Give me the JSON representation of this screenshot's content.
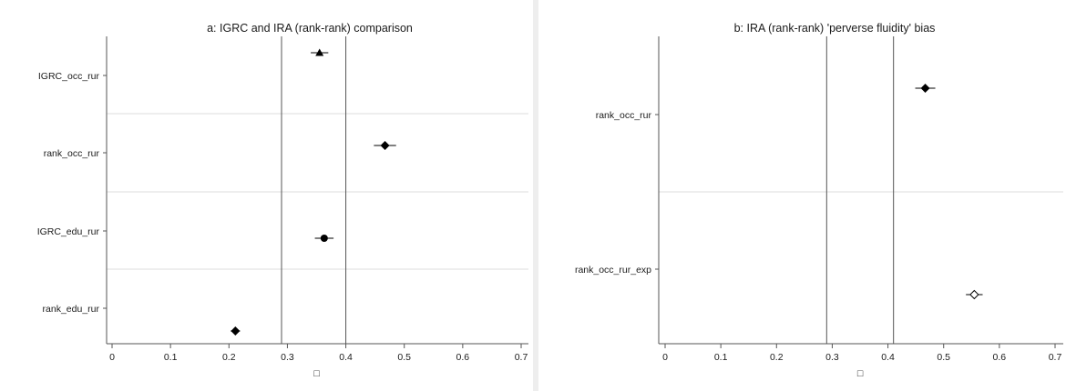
{
  "chart_data": [
    {
      "type": "scatter",
      "title": "a: IGRC and IRA (rank-rank) comparison",
      "categories": [
        "IGRC_occ_rur",
        "rank_occ_rur",
        "IGRC_edu_rur",
        "rank_edu_rur"
      ],
      "points": [
        {
          "label": "IGRC_occ_rur",
          "estimate": 0.355,
          "ci": [
            0.34,
            0.37
          ],
          "marker": "triangle"
        },
        {
          "label": "rank_occ_rur",
          "estimate": 0.467,
          "ci": [
            0.448,
            0.486
          ],
          "marker": "diamond"
        },
        {
          "label": "IGRC_edu_rur",
          "estimate": 0.363,
          "ci": [
            0.347,
            0.379
          ],
          "marker": "circle"
        },
        {
          "label": "rank_edu_rur",
          "estimate": 0.211,
          "ci": [
            0.203,
            0.219
          ],
          "marker": "diamond"
        }
      ],
      "reference_lines": [
        0.29,
        0.4
      ],
      "xlim": [
        -0.01,
        0.71
      ],
      "xticks": [
        "0",
        "0.1",
        "0.2",
        "0.3",
        "0.4",
        "0.5",
        "0.6",
        "0.7"
      ],
      "xtick_values": [
        0,
        0.1,
        0.2,
        0.3,
        0.4,
        0.5,
        0.6,
        0.7
      ],
      "legend_symbol": "□",
      "grid": "horizontal separators"
    },
    {
      "type": "scatter",
      "title": "b: IRA (rank-rank) 'perverse fluidity' bias",
      "categories": [
        "rank_occ_rur",
        "rank_occ_rur_exp"
      ],
      "points": [
        {
          "label": "rank_occ_rur",
          "estimate": 0.467,
          "ci": [
            0.449,
            0.485
          ],
          "marker": "diamond"
        },
        {
          "label": "rank_occ_rur_exp",
          "estimate": 0.555,
          "ci": [
            0.54,
            0.57
          ],
          "marker": "diamond-hollow"
        }
      ],
      "reference_lines": [
        0.29,
        0.41
      ],
      "xlim": [
        -0.01,
        0.71
      ],
      "xticks": [
        "0",
        "0.1",
        "0.2",
        "0.3",
        "0.4",
        "0.5",
        "0.6",
        "0.7"
      ],
      "xtick_values": [
        0,
        0.1,
        0.2,
        0.3,
        0.4,
        0.5,
        0.6,
        0.7
      ],
      "legend_symbol": "□",
      "grid": "horizontal separators"
    }
  ],
  "colors": {
    "mark": "#000000",
    "axis": "#555555",
    "refline": "#555555",
    "grid": "#dcdcdc"
  }
}
